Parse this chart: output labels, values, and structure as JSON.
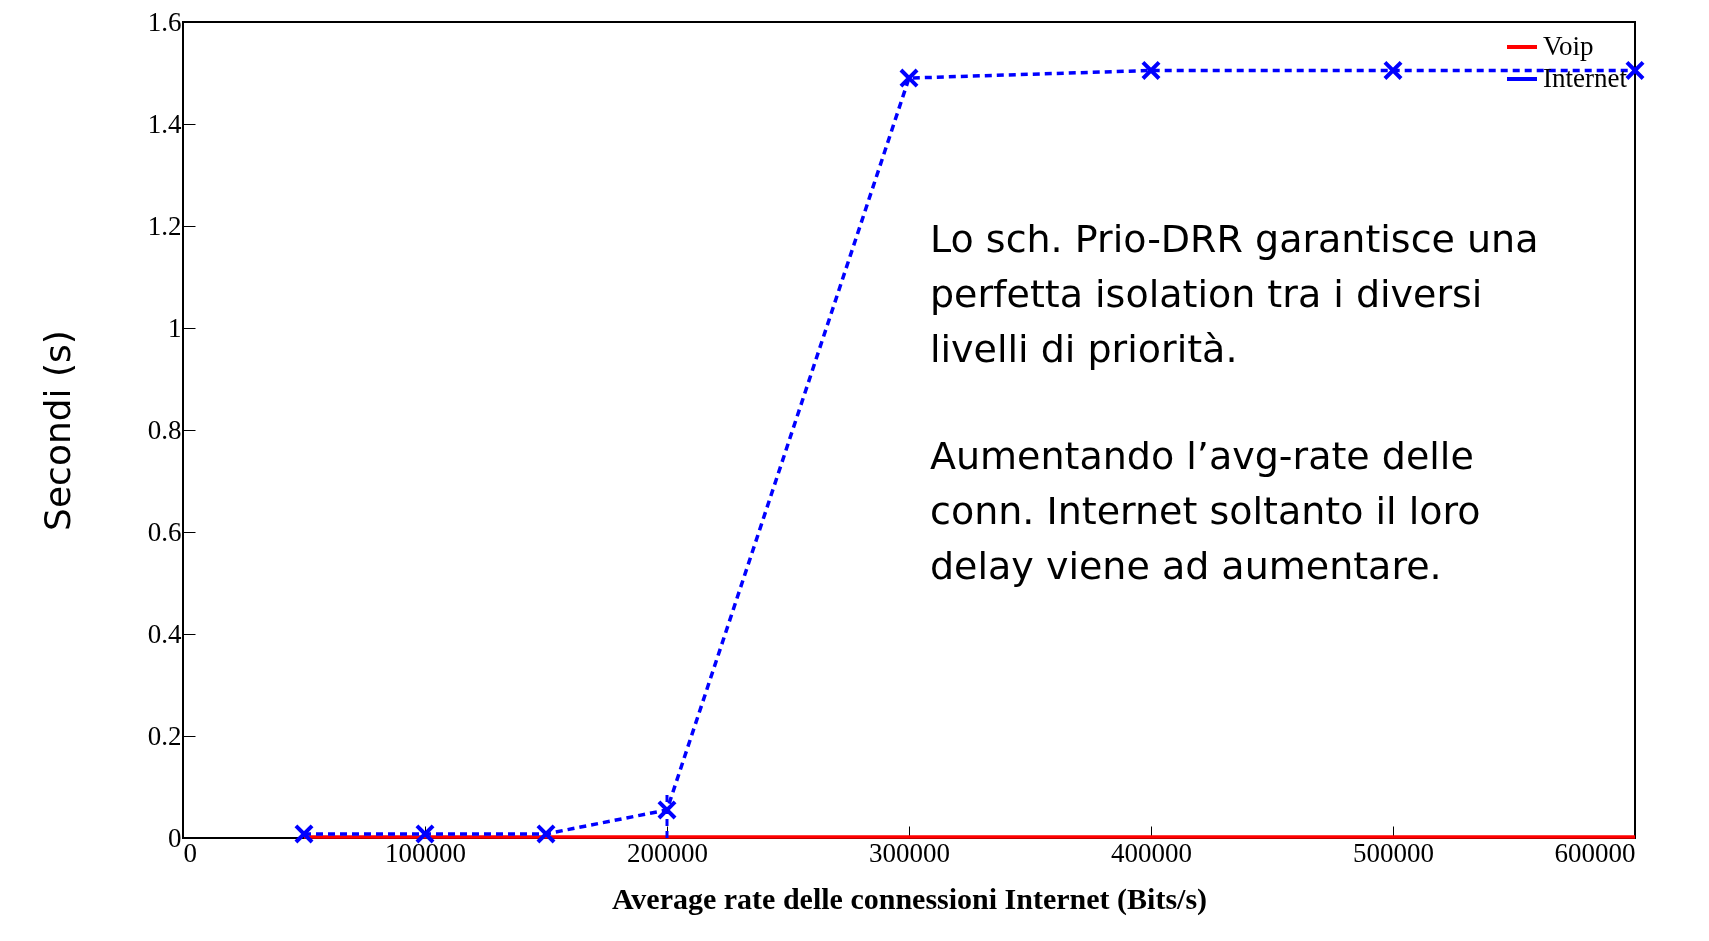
{
  "chart_data": {
    "type": "line",
    "xlabel": "Average rate delle connessioni Internet (Bits/s)",
    "ylabel": "Secondi (s)",
    "x": [
      50000,
      100000,
      150000,
      200000,
      300000,
      400000,
      500000,
      600000
    ],
    "series": [
      {
        "name": "Voip",
        "color": "#ff0000",
        "line_style": "solid",
        "marker": "none",
        "values": [
          0.002,
          0.002,
          0.002,
          0.002,
          0.002,
          0.002,
          0.002,
          0.002
        ]
      },
      {
        "name": "Internet",
        "color": "#0000ff",
        "line_style": "dashed",
        "marker": "cross",
        "values": [
          0.008,
          0.008,
          0.008,
          0.055,
          1.49,
          1.505,
          1.505,
          1.505
        ],
        "errors": [
          null,
          null,
          null,
          [
            0,
            0.09
          ],
          null,
          null,
          null,
          null
        ]
      }
    ],
    "xlim": [
      0,
      600000
    ],
    "xticks": [
      0,
      100000,
      200000,
      300000,
      400000,
      500000,
      600000
    ],
    "ylim": [
      0,
      1.6
    ],
    "yticks": [
      0,
      0.2,
      0.4,
      0.6,
      0.8,
      1,
      1.2,
      1.4,
      1.6
    ],
    "grid": false,
    "legend": "top right",
    "annotations": [
      "Lo sch. Prio-DRR garantisce una perfetta isolation tra i diversi livelli di priorità.",
      "Aumentando l’avg-rate delle conn. Internet soltanto il loro delay viene ad aumentare."
    ]
  }
}
